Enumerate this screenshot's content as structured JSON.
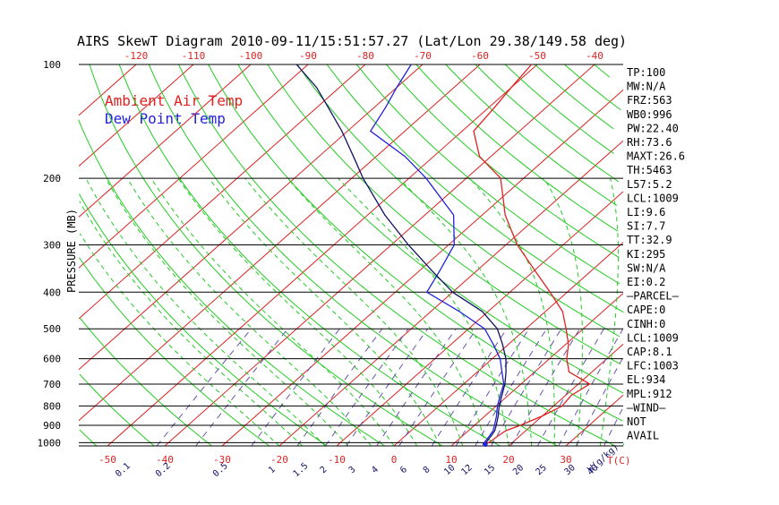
{
  "chart_data": {
    "type": "line",
    "title": "AIRS SkewT Diagram 2010-09-11/15:51:57.27 (Lat/Lon 29.38/149.58 deg)",
    "ylabel": "PRESSURE (MB)",
    "xlabel": "T(C)",
    "mixing_label": "W(g/kg)",
    "ylim": [
      1020,
      100
    ],
    "xlim_bottom_c": [
      -55,
      40
    ],
    "xlim_top_c": [
      -130,
      -35
    ],
    "pressure_ticks": [
      100,
      200,
      300,
      400,
      500,
      600,
      700,
      800,
      900,
      1000
    ],
    "bottom_temp_ticks": [
      -50,
      -40,
      -30,
      -20,
      -10,
      0,
      10,
      20,
      30
    ],
    "top_temp_ticks": [
      -120,
      -110,
      -100,
      -90,
      -80,
      -70,
      -60,
      -50,
      -40
    ],
    "mixing_ratio_ticks": [
      "0.1",
      "0.2",
      "0.5",
      "1",
      "1.5",
      "2",
      "3",
      "4",
      "6",
      "8",
      "10",
      "12",
      "15",
      "20",
      "25",
      "30",
      "40"
    ],
    "mixing_ratio_ticks_c": [
      -47,
      -40,
      -30,
      -21,
      -16,
      -12,
      -7,
      -3,
      2,
      6,
      10,
      13,
      17,
      22,
      26,
      31,
      35
    ],
    "legend": [
      {
        "label": "Ambient Air Temp",
        "color": "#dd2222"
      },
      {
        "label": "Dew Point Temp",
        "color": "#2222dd"
      }
    ],
    "colors": {
      "temp": "#dd2222",
      "dewpoint": "#2222dd",
      "parcel": "#111166",
      "isotherm": "#dd2222",
      "dry_adiabat": "#22cc22",
      "moist_adiabat": "#22cc22",
      "mixing_ratio": "#6655aa",
      "isobar": "#000000"
    },
    "series": [
      {
        "name": "Ambient Air Temp",
        "pressure": [
          1012,
          990,
          960,
          930,
          900,
          850,
          800,
          750,
          700,
          650,
          600,
          550,
          500,
          450,
          400,
          350,
          300,
          250,
          200,
          175,
          150,
          130,
          115,
          100
        ],
        "temp_c": [
          15.7,
          16.0,
          16.2,
          16.5,
          18.0,
          20.0,
          21.5,
          21.0,
          22.0,
          16.0,
          13.0,
          10.5,
          7.0,
          3.0,
          -3.0,
          -10.0,
          -18.0,
          -26.0,
          -34.0,
          -42.0,
          -48.0,
          -49.0,
          -50.0,
          -51.0
        ]
      },
      {
        "name": "Dew Point Temp",
        "pressure": [
          1012,
          990,
          960,
          930,
          900,
          850,
          800,
          750,
          700,
          650,
          600,
          550,
          500,
          450,
          400,
          350,
          300,
          250,
          200,
          175,
          150,
          130,
          115,
          100
        ],
        "temp_c": [
          15.2,
          15.0,
          14.7,
          14.3,
          13.5,
          12.0,
          10.2,
          8.6,
          7.0,
          4.3,
          1.4,
          -2.6,
          -7.2,
          -15.0,
          -24.5,
          -26.5,
          -29.0,
          -35.0,
          -47.0,
          -55.0,
          -66.0,
          -68.0,
          -70.0,
          -72.0
        ]
      },
      {
        "name": "Parcel",
        "pressure": [
          1012,
          990,
          960,
          930,
          900,
          850,
          800,
          750,
          700,
          650,
          600,
          550,
          500,
          450,
          400,
          350,
          300,
          250,
          200,
          175,
          150,
          130,
          115,
          100
        ],
        "temp_c": [
          15.5,
          15.3,
          15.0,
          14.6,
          13.8,
          12.3,
          10.5,
          8.9,
          7.2,
          5.0,
          2.4,
          -1.0,
          -5.0,
          -11.0,
          -20.0,
          -28.0,
          -37.0,
          -47.0,
          -58.0,
          -64.0,
          -71.0,
          -78.0,
          -84.0,
          -92.0
        ]
      }
    ],
    "indices": [
      "TP:100",
      "MW:N/A",
      "FRZ:563",
      "WB0:996",
      "PW:22.40",
      "RH:73.6",
      "MAXT:26.6",
      "TH:5463",
      "L57:5.2",
      "LCL:1009",
      "LI:9.6",
      "SI:7.7",
      "TT:32.9",
      "KI:295",
      "SW:N/A",
      "EI:0.2",
      "—PARCEL—",
      "CAPE:0",
      "CINH:0",
      "LCL:1009",
      "CAP:8.1",
      "LFC:1003",
      "EL:934",
      "MPL:912",
      "—WIND—",
      "NOT",
      "AVAIL"
    ]
  }
}
